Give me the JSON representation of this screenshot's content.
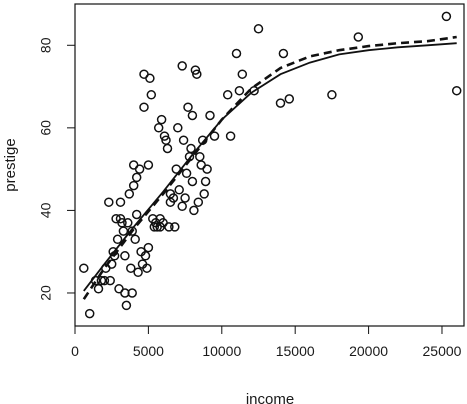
{
  "chart_data": {
    "type": "scatter",
    "title": "",
    "xlabel": "income",
    "ylabel": "prestige",
    "xlim": [
      0,
      26500
    ],
    "ylim": [
      12,
      90
    ],
    "x_ticks": [
      0,
      5000,
      10000,
      15000,
      20000,
      25000
    ],
    "y_ticks": [
      20,
      40,
      60,
      80
    ],
    "x_tick_labels": [
      "0",
      "5000",
      "10000",
      "15000",
      "20000",
      "25000"
    ],
    "y_tick_labels": [
      "20",
      "40",
      "60",
      "80"
    ],
    "grid": false,
    "points": [
      [
        600,
        26
      ],
      [
        1000,
        15
      ],
      [
        1400,
        23
      ],
      [
        1600,
        21
      ],
      [
        1800,
        23
      ],
      [
        2000,
        23
      ],
      [
        2100,
        26
      ],
      [
        2300,
        42
      ],
      [
        2400,
        23
      ],
      [
        2500,
        27
      ],
      [
        2600,
        30
      ],
      [
        2700,
        29
      ],
      [
        2800,
        38
      ],
      [
        2900,
        33
      ],
      [
        3000,
        21
      ],
      [
        3100,
        38
      ],
      [
        3100,
        42
      ],
      [
        3200,
        37
      ],
      [
        3300,
        35
      ],
      [
        3400,
        29
      ],
      [
        3400,
        20
      ],
      [
        3500,
        17
      ],
      [
        3600,
        37
      ],
      [
        3700,
        44
      ],
      [
        3800,
        26
      ],
      [
        3900,
        20
      ],
      [
        3900,
        35
      ],
      [
        4000,
        46
      ],
      [
        4000,
        51
      ],
      [
        4100,
        33
      ],
      [
        4200,
        39
      ],
      [
        4200,
        48
      ],
      [
        4300,
        25
      ],
      [
        4400,
        50
      ],
      [
        4500,
        30
      ],
      [
        4600,
        27
      ],
      [
        4700,
        65
      ],
      [
        4700,
        73
      ],
      [
        4800,
        29
      ],
      [
        4900,
        26
      ],
      [
        5000,
        31
      ],
      [
        5000,
        51
      ],
      [
        5100,
        72
      ],
      [
        5200,
        68
      ],
      [
        5300,
        38
      ],
      [
        5400,
        36
      ],
      [
        5500,
        37
      ],
      [
        5600,
        36
      ],
      [
        5700,
        60
      ],
      [
        5800,
        38
      ],
      [
        5800,
        36
      ],
      [
        5900,
        62
      ],
      [
        6000,
        37
      ],
      [
        6100,
        58
      ],
      [
        6200,
        57
      ],
      [
        6300,
        55
      ],
      [
        6400,
        36
      ],
      [
        6500,
        44
      ],
      [
        6500,
        42
      ],
      [
        6700,
        43
      ],
      [
        6800,
        36
      ],
      [
        6900,
        50
      ],
      [
        7000,
        60
      ],
      [
        7100,
        45
      ],
      [
        7300,
        75
      ],
      [
        7300,
        41
      ],
      [
        7400,
        57
      ],
      [
        7500,
        43
      ],
      [
        7600,
        49
      ],
      [
        7700,
        65
      ],
      [
        7800,
        53
      ],
      [
        7900,
        55
      ],
      [
        8000,
        63
      ],
      [
        8000,
        47
      ],
      [
        8100,
        40
      ],
      [
        8200,
        74
      ],
      [
        8300,
        73
      ],
      [
        8400,
        42
      ],
      [
        8500,
        53
      ],
      [
        8600,
        51
      ],
      [
        8700,
        57
      ],
      [
        8800,
        44
      ],
      [
        8900,
        47
      ],
      [
        9000,
        50
      ],
      [
        9200,
        63
      ],
      [
        9500,
        58
      ],
      [
        10400,
        68
      ],
      [
        10600,
        58
      ],
      [
        11000,
        78
      ],
      [
        11200,
        69
      ],
      [
        11400,
        73
      ],
      [
        12200,
        69
      ],
      [
        12500,
        84
      ],
      [
        14000,
        66
      ],
      [
        14200,
        78
      ],
      [
        14600,
        67
      ],
      [
        17500,
        68
      ],
      [
        19300,
        82
      ],
      [
        25300,
        87
      ],
      [
        26000,
        69
      ]
    ],
    "series": [
      {
        "style": "solid",
        "x": [
          600,
          2000,
          4000,
          6000,
          8000,
          10000,
          12000,
          14000,
          16000,
          18000,
          20000,
          22000,
          24000,
          26000
        ],
        "y": [
          20.5,
          27,
          36,
          44.5,
          53.5,
          62,
          68.5,
          73,
          75.8,
          77.8,
          78.8,
          79.5,
          80,
          80.5
        ]
      },
      {
        "style": "dashed",
        "x": [
          600,
          2000,
          4000,
          6000,
          8000,
          10000,
          12000,
          14000,
          16000,
          18000,
          20000,
          22000,
          24000,
          26000
        ],
        "y": [
          18.5,
          26,
          35.5,
          44,
          53,
          62,
          69.5,
          74.5,
          77.3,
          78.8,
          79.8,
          80.5,
          81,
          82
        ]
      }
    ]
  }
}
